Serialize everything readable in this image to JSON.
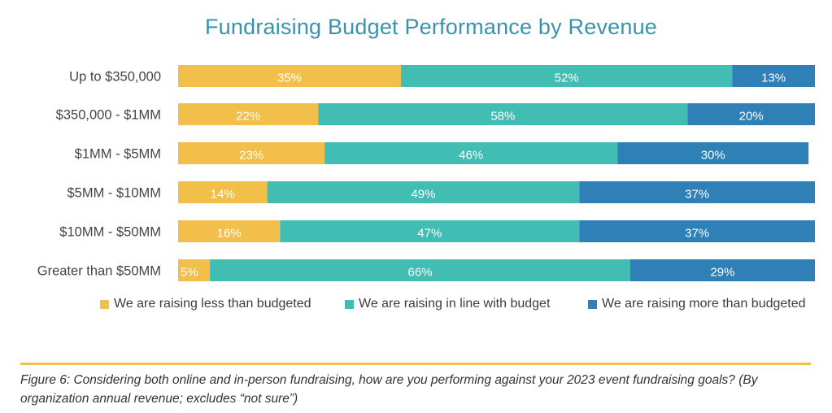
{
  "chart_data": {
    "type": "bar",
    "orientation": "horizontal",
    "stacked": true,
    "title": "Fundraising Budget Performance by Revenue",
    "xlabel": "",
    "ylabel": "",
    "xlim": [
      0,
      100
    ],
    "grid": false,
    "legend_position": "bottom",
    "categories": [
      "Up to $350,000",
      "$350,000 - $1MM",
      "$1MM - $5MM",
      "$5MM - $10MM",
      "$10MM - $50MM",
      "Greater than $50MM"
    ],
    "series": [
      {
        "name": "We are raising less than budgeted",
        "color": "#f2c04a",
        "values": [
          35,
          22,
          23,
          14,
          16,
          5
        ],
        "labels": [
          "35%",
          "22%",
          "23%",
          "14%",
          "16%",
          "5%"
        ]
      },
      {
        "name": "We are raising in line with budget",
        "color": "#41bdb3",
        "values": [
          52,
          58,
          46,
          49,
          47,
          66
        ],
        "labels": [
          "52%",
          "58%",
          "46%",
          "49%",
          "47%",
          "66%"
        ]
      },
      {
        "name": "We are raising more than budgeted",
        "color": "#2f80b7",
        "values": [
          13,
          20,
          30,
          37,
          37,
          29
        ],
        "labels": [
          "13%",
          "20%",
          "30%",
          "37%",
          "37%",
          "29%"
        ]
      }
    ]
  },
  "caption": "Figure 6: Considering both online and in-person fundraising, how are you performing against your 2023 event fundraising goals? (By organization annual revenue; excludes “not sure”)"
}
